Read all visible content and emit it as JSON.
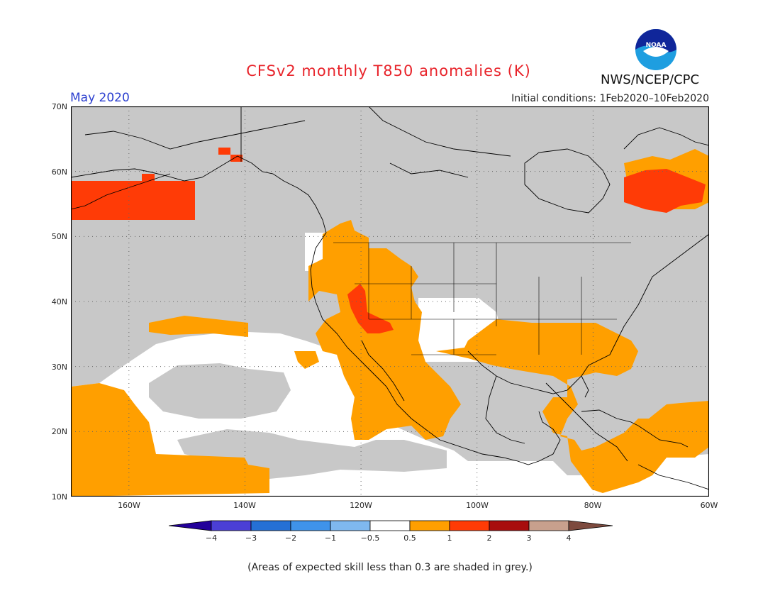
{
  "title": "CFSv2 monthly T850 anomalies (K)",
  "month": "May 2020",
  "initial_conditions": "Initial conditions: 1Feb2020–10Feb2020",
  "agency": "NWS/NCEP/CPC",
  "logo": {
    "text": "NOAA",
    "icon": "noaa-logo"
  },
  "note": "(Areas of expected skill less than 0.3 are shaded in grey.)",
  "map": {
    "projection": "lat-lon",
    "lon_range": [
      -170,
      -60
    ],
    "lat_range": [
      10,
      70
    ],
    "lat_labels": [
      "70N",
      "60N",
      "50N",
      "40N",
      "30N",
      "20N",
      "10N"
    ],
    "lon_labels": [
      "160W",
      "140W",
      "120W",
      "100W",
      "80W",
      "60W"
    ],
    "grid": "dotted",
    "colors": {
      "low_skill": "#c8c8c8",
      "neutral": "#ffffff",
      "warm_0_5_to_1": "#ff9f00",
      "warm_1_to_2": "#ff3b06",
      "coast": "#000000"
    }
  },
  "colorbar": {
    "labels": [
      "−4",
      "−3",
      "−2",
      "−1",
      "−0.5",
      "0.5",
      "1",
      "2",
      "3",
      "4"
    ],
    "colors": [
      "#23009a",
      "#4b3fd6",
      "#2570d5",
      "#3f93ea",
      "#7fb8ef",
      "#ffffff",
      "#ff9f00",
      "#ff3b06",
      "#a80d0d",
      "#c8a08d",
      "#7d4a3e"
    ]
  }
}
